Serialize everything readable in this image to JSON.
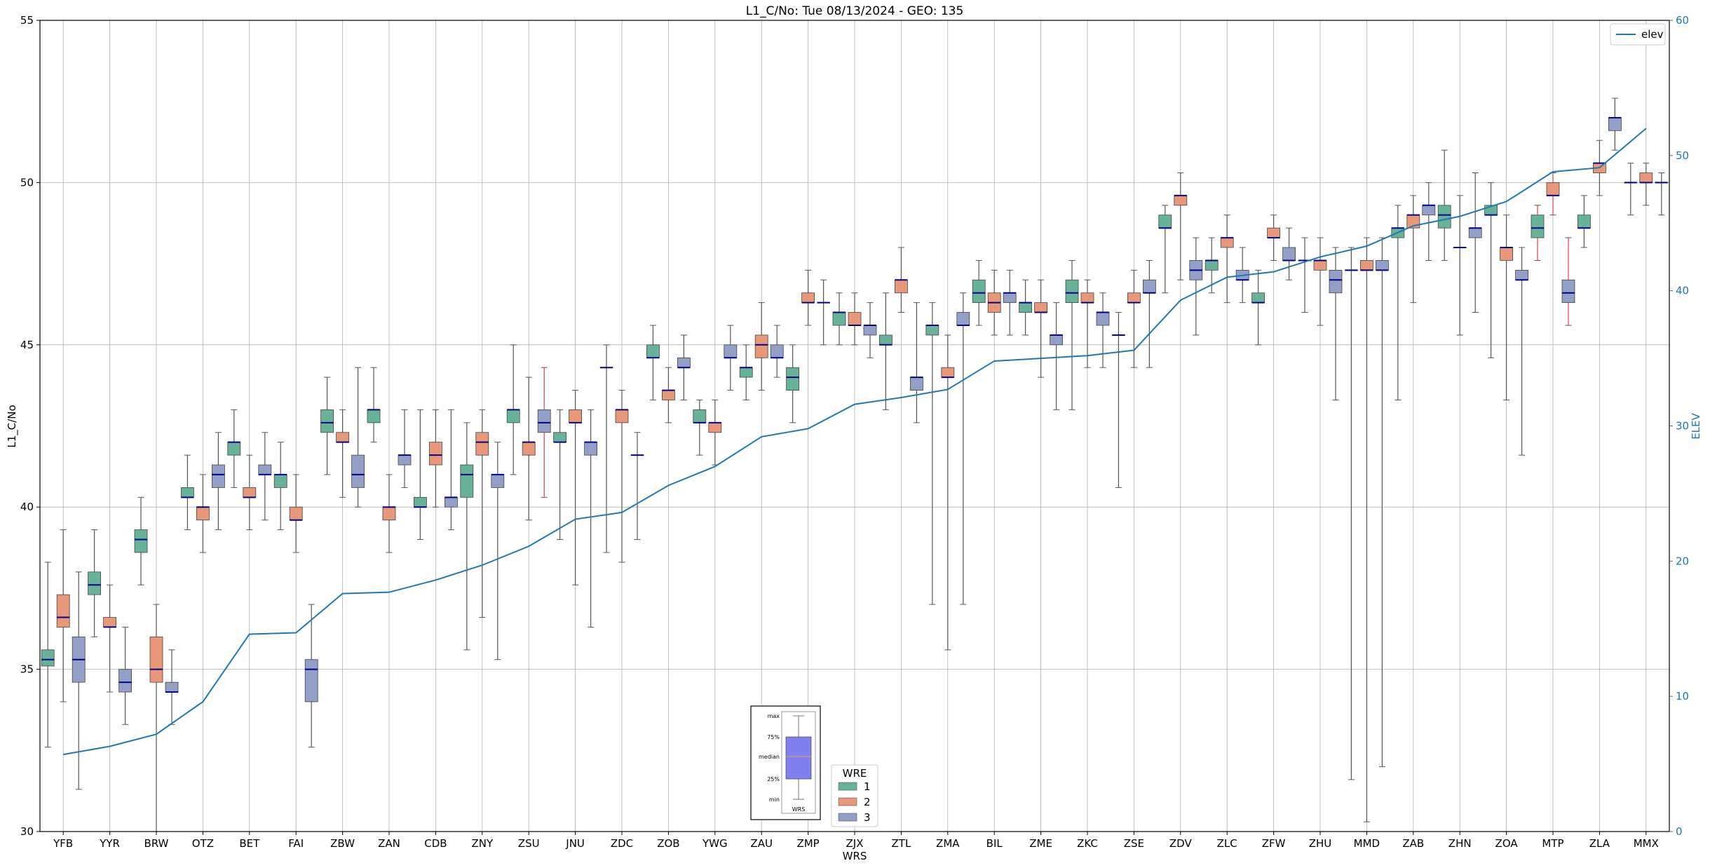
{
  "colors": {
    "wre1": "#66b39a",
    "wre2": "#e89779",
    "wre3": "#929fc6",
    "median": "#00008b",
    "whisker": "#555555",
    "whisker_red": "#e04040",
    "elev": "#1f77b4",
    "grid": "#b0b0b0",
    "inset_box": "#8080f0",
    "inset_median": "#e8a050"
  },
  "chart_data": {
    "type": "box",
    "title": "L1_C/No: Tue 08/13/2024 - GEO: 135",
    "xlabel": "WRS",
    "ylabel": "L1_C/No",
    "ylabel_right": "ELEV",
    "ylim": [
      30,
      55
    ],
    "ylim_right": [
      0,
      60
    ],
    "yticks": [
      "30",
      "35",
      "40",
      "45",
      "50",
      "55"
    ],
    "yticks_right": [
      "0",
      "10",
      "20",
      "30",
      "40",
      "50",
      "60"
    ],
    "grid": true,
    "categories": [
      "YFB",
      "YYR",
      "BRW",
      "OTZ",
      "BET",
      "FAI",
      "ZBW",
      "ZAN",
      "CDB",
      "ZNY",
      "ZSU",
      "JNU",
      "ZDC",
      "ZOB",
      "YWG",
      "ZAU",
      "ZMP",
      "ZJX",
      "ZTL",
      "ZMA",
      "BIL",
      "ZME",
      "ZKC",
      "ZSE",
      "ZDV",
      "ZLC",
      "ZFW",
      "ZHU",
      "MMD",
      "ZAB",
      "ZHN",
      "ZOA",
      "MTP",
      "ZLA",
      "MMX"
    ],
    "legend": {
      "title": "WRE",
      "entries": [
        "1",
        "2",
        "3"
      ]
    },
    "line_legend": "elev",
    "inset": {
      "labels": [
        "max",
        "75%",
        "median",
        "25%",
        "min"
      ],
      "xlabel": "WRS"
    },
    "boxes": [
      {
        "station": "YFB",
        "wre": 1,
        "min": 32.6,
        "q1": 35.1,
        "median": 35.3,
        "q3": 35.6,
        "max": 38.3
      },
      {
        "station": "YFB",
        "wre": 2,
        "min": 34.0,
        "q1": 36.3,
        "median": 36.6,
        "q3": 37.3,
        "max": 39.3
      },
      {
        "station": "YFB",
        "wre": 3,
        "min": 31.3,
        "q1": 34.6,
        "median": 35.3,
        "q3": 36.0,
        "max": 38.0
      },
      {
        "station": "YYR",
        "wre": 1,
        "min": 36.0,
        "q1": 37.3,
        "median": 37.6,
        "q3": 38.0,
        "max": 39.3
      },
      {
        "station": "YYR",
        "wre": 2,
        "min": 34.3,
        "q1": 36.3,
        "median": 36.3,
        "q3": 36.6,
        "max": 37.6
      },
      {
        "station": "YYR",
        "wre": 3,
        "min": 33.3,
        "q1": 34.3,
        "median": 34.6,
        "q3": 35.0,
        "max": 36.3
      },
      {
        "station": "BRW",
        "wre": 1,
        "min": 37.6,
        "q1": 38.6,
        "median": 39.0,
        "q3": 39.3,
        "max": 40.3
      },
      {
        "station": "BRW",
        "wre": 2,
        "min": 30.0,
        "q1": 34.6,
        "median": 35.0,
        "q3": 36.0,
        "max": 37.0
      },
      {
        "station": "BRW",
        "wre": 3,
        "min": 33.3,
        "q1": 34.3,
        "median": 34.3,
        "q3": 34.6,
        "max": 35.6
      },
      {
        "station": "OTZ",
        "wre": 1,
        "min": 39.3,
        "q1": 40.3,
        "median": 40.3,
        "q3": 40.6,
        "max": 41.6
      },
      {
        "station": "OTZ",
        "wre": 2,
        "min": 38.6,
        "q1": 39.6,
        "median": 40.0,
        "q3": 40.0,
        "max": 41.0
      },
      {
        "station": "OTZ",
        "wre": 3,
        "min": 39.3,
        "q1": 40.6,
        "median": 41.0,
        "q3": 41.3,
        "max": 42.3
      },
      {
        "station": "BET",
        "wre": 1,
        "min": 40.6,
        "q1": 41.6,
        "median": 42.0,
        "q3": 42.0,
        "max": 43.0
      },
      {
        "station": "BET",
        "wre": 2,
        "min": 39.3,
        "q1": 40.3,
        "median": 40.3,
        "q3": 40.6,
        "max": 41.6
      },
      {
        "station": "BET",
        "wre": 3,
        "min": 39.6,
        "q1": 41.0,
        "median": 41.0,
        "q3": 41.3,
        "max": 42.3
      },
      {
        "station": "FAI",
        "wre": 1,
        "min": 39.3,
        "q1": 40.6,
        "median": 41.0,
        "q3": 41.0,
        "max": 42.0
      },
      {
        "station": "FAI",
        "wre": 2,
        "min": 38.6,
        "q1": 39.6,
        "median": 39.6,
        "q3": 40.0,
        "max": 41.0
      },
      {
        "station": "FAI",
        "wre": 3,
        "min": 32.6,
        "q1": 34.0,
        "median": 35.0,
        "q3": 35.3,
        "max": 37.0
      },
      {
        "station": "ZBW",
        "wre": 1,
        "min": 41.0,
        "q1": 42.3,
        "median": 42.6,
        "q3": 43.0,
        "max": 44.0
      },
      {
        "station": "ZBW",
        "wre": 2,
        "min": 40.3,
        "q1": 42.0,
        "median": 42.0,
        "q3": 42.3,
        "max": 43.0
      },
      {
        "station": "ZBW",
        "wre": 3,
        "min": 40.0,
        "q1": 40.6,
        "median": 41.0,
        "q3": 41.6,
        "max": 44.3
      },
      {
        "station": "ZAN",
        "wre": 1,
        "min": 42.0,
        "q1": 42.6,
        "median": 43.0,
        "q3": 43.0,
        "max": 44.3
      },
      {
        "station": "ZAN",
        "wre": 2,
        "min": 38.6,
        "q1": 39.6,
        "median": 40.0,
        "q3": 40.0,
        "max": 41.0
      },
      {
        "station": "ZAN",
        "wre": 3,
        "min": 40.6,
        "q1": 41.3,
        "median": 41.6,
        "q3": 41.6,
        "max": 43.0
      },
      {
        "station": "CDB",
        "wre": 1,
        "min": 39.0,
        "q1": 40.0,
        "median": 40.0,
        "q3": 40.3,
        "max": 43.0
      },
      {
        "station": "CDB",
        "wre": 2,
        "min": 40.0,
        "q1": 41.3,
        "median": 41.6,
        "q3": 42.0,
        "max": 43.0
      },
      {
        "station": "CDB",
        "wre": 3,
        "min": 39.3,
        "q1": 40.0,
        "median": 40.3,
        "q3": 40.3,
        "max": 43.0
      },
      {
        "station": "ZNY",
        "wre": 1,
        "min": 35.6,
        "q1": 40.3,
        "median": 41.0,
        "q3": 41.3,
        "max": 42.6
      },
      {
        "station": "ZNY",
        "wre": 2,
        "min": 36.6,
        "q1": 41.6,
        "median": 42.0,
        "q3": 42.3,
        "max": 43.0
      },
      {
        "station": "ZNY",
        "wre": 3,
        "min": 35.3,
        "q1": 40.6,
        "median": 41.0,
        "q3": 41.0,
        "max": 42.0
      },
      {
        "station": "ZSU",
        "wre": 1,
        "min": 41.0,
        "q1": 42.6,
        "median": 43.0,
        "q3": 43.0,
        "max": 45.0
      },
      {
        "station": "ZSU",
        "wre": 2,
        "min": 39.6,
        "q1": 41.6,
        "median": 42.0,
        "q3": 42.0,
        "max": 44.0
      },
      {
        "station": "ZSU",
        "wre": 3,
        "min": 40.3,
        "q1": 42.3,
        "median": 42.6,
        "q3": 43.0,
        "max": 44.3,
        "red": true
      },
      {
        "station": "JNU",
        "wre": 1,
        "min": 39.0,
        "q1": 42.0,
        "median": 42.0,
        "q3": 42.3,
        "max": 43.0
      },
      {
        "station": "JNU",
        "wre": 2,
        "min": 37.6,
        "q1": 42.6,
        "median": 42.6,
        "q3": 43.0,
        "max": 43.6
      },
      {
        "station": "JNU",
        "wre": 3,
        "min": 36.3,
        "q1": 41.6,
        "median": 42.0,
        "q3": 42.0,
        "max": 43.0
      },
      {
        "station": "ZDC",
        "wre": 1,
        "min": 38.6,
        "q1": 44.3,
        "median": 44.3,
        "q3": 44.3,
        "max": 45.0
      },
      {
        "station": "ZDC",
        "wre": 2,
        "min": 38.3,
        "q1": 42.6,
        "median": 43.0,
        "q3": 43.0,
        "max": 43.6
      },
      {
        "station": "ZDC",
        "wre": 3,
        "min": 39.0,
        "q1": 41.6,
        "median": 41.6,
        "q3": 41.6,
        "max": 42.3
      },
      {
        "station": "ZOB",
        "wre": 1,
        "min": 43.3,
        "q1": 44.6,
        "median": 44.6,
        "q3": 45.0,
        "max": 45.6
      },
      {
        "station": "ZOB",
        "wre": 2,
        "min": 42.6,
        "q1": 43.3,
        "median": 43.6,
        "q3": 43.6,
        "max": 44.3
      },
      {
        "station": "ZOB",
        "wre": 3,
        "min": 43.3,
        "q1": 44.3,
        "median": 44.3,
        "q3": 44.6,
        "max": 45.3
      },
      {
        "station": "YWG",
        "wre": 1,
        "min": 41.6,
        "q1": 42.6,
        "median": 42.6,
        "q3": 43.0,
        "max": 43.3
      },
      {
        "station": "YWG",
        "wre": 2,
        "min": 41.3,
        "q1": 42.3,
        "median": 42.6,
        "q3": 42.6,
        "max": 43.3
      },
      {
        "station": "YWG",
        "wre": 3,
        "min": 43.6,
        "q1": 44.6,
        "median": 44.6,
        "q3": 45.0,
        "max": 45.6
      },
      {
        "station": "ZAU",
        "wre": 1,
        "min": 43.3,
        "q1": 44.0,
        "median": 44.3,
        "q3": 44.3,
        "max": 45.0
      },
      {
        "station": "ZAU",
        "wre": 2,
        "min": 43.6,
        "q1": 44.6,
        "median": 45.0,
        "q3": 45.3,
        "max": 46.3
      },
      {
        "station": "ZAU",
        "wre": 3,
        "min": 44.0,
        "q1": 44.6,
        "median": 44.6,
        "q3": 45.0,
        "max": 45.6
      },
      {
        "station": "ZMP",
        "wre": 1,
        "min": 42.6,
        "q1": 43.6,
        "median": 44.0,
        "q3": 44.3,
        "max": 45.0
      },
      {
        "station": "ZMP",
        "wre": 2,
        "min": 45.6,
        "q1": 46.3,
        "median": 46.3,
        "q3": 46.6,
        "max": 47.3
      },
      {
        "station": "ZMP",
        "wre": 3,
        "min": 45.0,
        "q1": 46.3,
        "median": 46.3,
        "q3": 46.3,
        "max": 47.0
      },
      {
        "station": "ZJX",
        "wre": 1,
        "min": 45.0,
        "q1": 45.6,
        "median": 46.0,
        "q3": 46.0,
        "max": 46.6
      },
      {
        "station": "ZJX",
        "wre": 2,
        "min": 45.0,
        "q1": 45.6,
        "median": 45.6,
        "q3": 46.0,
        "max": 46.6
      },
      {
        "station": "ZJX",
        "wre": 3,
        "min": 44.6,
        "q1": 45.3,
        "median": 45.6,
        "q3": 45.6,
        "max": 46.3
      },
      {
        "station": "ZTL",
        "wre": 1,
        "min": 43.0,
        "q1": 45.0,
        "median": 45.0,
        "q3": 45.3,
        "max": 46.6
      },
      {
        "station": "ZTL",
        "wre": 2,
        "min": 46.0,
        "q1": 46.6,
        "median": 47.0,
        "q3": 47.0,
        "max": 48.0
      },
      {
        "station": "ZTL",
        "wre": 3,
        "min": 42.6,
        "q1": 43.6,
        "median": 44.0,
        "q3": 44.0,
        "max": 46.3
      },
      {
        "station": "ZMA",
        "wre": 1,
        "min": 37.0,
        "q1": 45.3,
        "median": 45.6,
        "q3": 45.6,
        "max": 46.3
      },
      {
        "station": "ZMA",
        "wre": 2,
        "min": 35.6,
        "q1": 44.0,
        "median": 44.0,
        "q3": 44.3,
        "max": 45.3
      },
      {
        "station": "ZMA",
        "wre": 3,
        "min": 37.0,
        "q1": 45.6,
        "median": 45.6,
        "q3": 46.0,
        "max": 46.6
      },
      {
        "station": "BIL",
        "wre": 1,
        "min": 45.6,
        "q1": 46.3,
        "median": 46.6,
        "q3": 47.0,
        "max": 47.6
      },
      {
        "station": "BIL",
        "wre": 2,
        "min": 45.3,
        "q1": 46.0,
        "median": 46.3,
        "q3": 46.6,
        "max": 47.3
      },
      {
        "station": "BIL",
        "wre": 3,
        "min": 45.3,
        "q1": 46.3,
        "median": 46.6,
        "q3": 46.6,
        "max": 47.3
      },
      {
        "station": "ZME",
        "wre": 1,
        "min": 45.3,
        "q1": 46.0,
        "median": 46.3,
        "q3": 46.3,
        "max": 47.0
      },
      {
        "station": "ZME",
        "wre": 2,
        "min": 44.0,
        "q1": 46.0,
        "median": 46.0,
        "q3": 46.3,
        "max": 47.0
      },
      {
        "station": "ZME",
        "wre": 3,
        "min": 43.0,
        "q1": 45.0,
        "median": 45.3,
        "q3": 45.3,
        "max": 46.3
      },
      {
        "station": "ZKC",
        "wre": 1,
        "min": 43.0,
        "q1": 46.3,
        "median": 46.6,
        "q3": 47.0,
        "max": 47.6
      },
      {
        "station": "ZKC",
        "wre": 2,
        "min": 44.3,
        "q1": 46.3,
        "median": 46.3,
        "q3": 46.6,
        "max": 47.0
      },
      {
        "station": "ZKC",
        "wre": 3,
        "min": 44.3,
        "q1": 45.6,
        "median": 46.0,
        "q3": 46.0,
        "max": 46.6
      },
      {
        "station": "ZSE",
        "wre": 1,
        "min": 40.6,
        "q1": 45.3,
        "median": 45.3,
        "q3": 45.3,
        "max": 46.0
      },
      {
        "station": "ZSE",
        "wre": 2,
        "min": 44.3,
        "q1": 46.3,
        "median": 46.3,
        "q3": 46.6,
        "max": 47.3
      },
      {
        "station": "ZSE",
        "wre": 3,
        "min": 44.3,
        "q1": 46.6,
        "median": 46.6,
        "q3": 47.0,
        "max": 47.6
      },
      {
        "station": "ZDV",
        "wre": 1,
        "min": 46.6,
        "q1": 48.6,
        "median": 48.6,
        "q3": 49.0,
        "max": 49.3
      },
      {
        "station": "ZDV",
        "wre": 2,
        "min": 47.0,
        "q1": 49.3,
        "median": 49.6,
        "q3": 49.6,
        "max": 50.3
      },
      {
        "station": "ZDV",
        "wre": 3,
        "min": 45.3,
        "q1": 47.0,
        "median": 47.3,
        "q3": 47.6,
        "max": 48.3
      },
      {
        "station": "ZLC",
        "wre": 1,
        "min": 46.6,
        "q1": 47.3,
        "median": 47.6,
        "q3": 47.6,
        "max": 48.3
      },
      {
        "station": "ZLC",
        "wre": 2,
        "min": 46.3,
        "q1": 48.0,
        "median": 48.3,
        "q3": 48.3,
        "max": 49.0
      },
      {
        "station": "ZLC",
        "wre": 3,
        "min": 46.3,
        "q1": 47.0,
        "median": 47.0,
        "q3": 47.3,
        "max": 48.0
      },
      {
        "station": "ZFW",
        "wre": 1,
        "min": 45.0,
        "q1": 46.3,
        "median": 46.3,
        "q3": 46.6,
        "max": 47.3
      },
      {
        "station": "ZFW",
        "wre": 2,
        "min": 47.6,
        "q1": 48.3,
        "median": 48.3,
        "q3": 48.6,
        "max": 49.0
      },
      {
        "station": "ZFW",
        "wre": 3,
        "min": 47.0,
        "q1": 47.6,
        "median": 47.6,
        "q3": 48.0,
        "max": 48.6
      },
      {
        "station": "ZHU",
        "wre": 1,
        "min": 46.0,
        "q1": 47.6,
        "median": 47.6,
        "q3": 47.6,
        "max": 48.3
      },
      {
        "station": "ZHU",
        "wre": 2,
        "min": 45.6,
        "q1": 47.3,
        "median": 47.6,
        "q3": 47.6,
        "max": 48.3
      },
      {
        "station": "ZHU",
        "wre": 3,
        "min": 43.3,
        "q1": 46.6,
        "median": 47.0,
        "q3": 47.3,
        "max": 48.0
      },
      {
        "station": "MMD",
        "wre": 1,
        "min": 31.6,
        "q1": 47.3,
        "median": 47.3,
        "q3": 47.3,
        "max": 48.0
      },
      {
        "station": "MMD",
        "wre": 2,
        "min": 30.3,
        "q1": 47.3,
        "median": 47.3,
        "q3": 47.6,
        "max": 48.3
      },
      {
        "station": "MMD",
        "wre": 3,
        "min": 32.0,
        "q1": 47.3,
        "median": 47.3,
        "q3": 47.6,
        "max": 48.3
      },
      {
        "station": "ZAB",
        "wre": 1,
        "min": 43.3,
        "q1": 48.3,
        "median": 48.6,
        "q3": 48.6,
        "max": 49.3
      },
      {
        "station": "ZAB",
        "wre": 2,
        "min": 46.3,
        "q1": 48.6,
        "median": 49.0,
        "q3": 49.0,
        "max": 49.6
      },
      {
        "station": "ZAB",
        "wre": 3,
        "min": 47.6,
        "q1": 49.0,
        "median": 49.3,
        "q3": 49.3,
        "max": 50.0
      },
      {
        "station": "ZHN",
        "wre": 1,
        "min": 47.6,
        "q1": 48.6,
        "median": 49.0,
        "q3": 49.3,
        "max": 51.0
      },
      {
        "station": "ZHN",
        "wre": 2,
        "min": 45.3,
        "q1": 48.0,
        "median": 48.0,
        "q3": 48.0,
        "max": 49.6
      },
      {
        "station": "ZHN",
        "wre": 3,
        "min": 46.0,
        "q1": 48.3,
        "median": 48.6,
        "q3": 48.6,
        "max": 50.3
      },
      {
        "station": "ZOA",
        "wre": 1,
        "min": 44.6,
        "q1": 49.0,
        "median": 49.0,
        "q3": 49.3,
        "max": 50.0
      },
      {
        "station": "ZOA",
        "wre": 2,
        "min": 43.3,
        "q1": 47.6,
        "median": 48.0,
        "q3": 48.0,
        "max": 49.0
      },
      {
        "station": "ZOA",
        "wre": 3,
        "min": 41.6,
        "q1": 47.0,
        "median": 47.0,
        "q3": 47.3,
        "max": 48.0
      },
      {
        "station": "MTP",
        "wre": 1,
        "min": 47.6,
        "q1": 48.3,
        "median": 48.6,
        "q3": 49.0,
        "max": 49.3,
        "red": true
      },
      {
        "station": "MTP",
        "wre": 2,
        "min": 49.0,
        "q1": 49.6,
        "median": 49.6,
        "q3": 50.0,
        "max": 50.3,
        "red": true
      },
      {
        "station": "MTP",
        "wre": 3,
        "min": 45.6,
        "q1": 46.3,
        "median": 46.6,
        "q3": 47.0,
        "max": 48.3,
        "red": true
      },
      {
        "station": "ZLA",
        "wre": 1,
        "min": 48.0,
        "q1": 48.6,
        "median": 48.6,
        "q3": 49.0,
        "max": 49.6
      },
      {
        "station": "ZLA",
        "wre": 2,
        "min": 49.6,
        "q1": 50.3,
        "median": 50.6,
        "q3": 50.6,
        "max": 51.3
      },
      {
        "station": "ZLA",
        "wre": 3,
        "min": 51.0,
        "q1": 51.6,
        "median": 52.0,
        "q3": 52.0,
        "max": 52.6
      },
      {
        "station": "MMX",
        "wre": 1,
        "min": 49.0,
        "q1": 50.0,
        "median": 50.0,
        "q3": 50.0,
        "max": 50.6
      },
      {
        "station": "MMX",
        "wre": 2,
        "min": 49.3,
        "q1": 50.0,
        "median": 50.0,
        "q3": 50.3,
        "max": 50.6
      },
      {
        "station": "MMX",
        "wre": 3,
        "min": 49.0,
        "q1": 50.0,
        "median": 50.0,
        "q3": 50.0,
        "max": 50.3
      }
    ],
    "elev": [
      5.7,
      6.3,
      7.2,
      9.6,
      14.6,
      14.7,
      17.6,
      17.7,
      18.6,
      19.7,
      21.1,
      23.1,
      23.6,
      25.6,
      27.0,
      29.2,
      29.8,
      31.6,
      32.1,
      32.7,
      34.8,
      35.0,
      35.2,
      35.6,
      39.3,
      41.0,
      41.4,
      42.5,
      43.3,
      44.8,
      45.5,
      46.6,
      48.8,
      49.1,
      52.0
    ]
  }
}
